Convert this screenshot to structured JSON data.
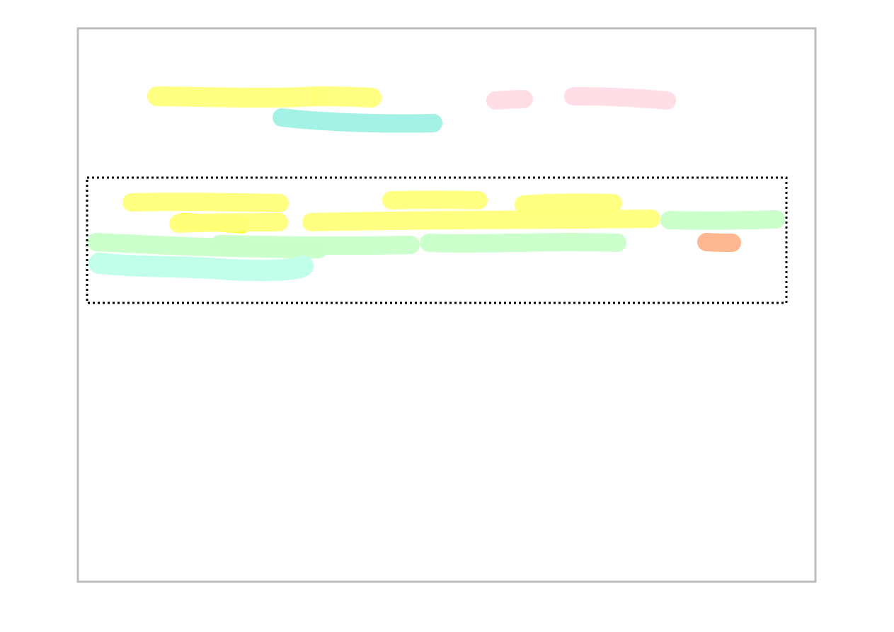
{
  "palette": {
    "page_background": "#ffffff",
    "frame_border": "#bdbdbd",
    "selection_border": "#000000",
    "yellow": "#ffff7a",
    "bright_yellow": "#ffff33",
    "teal": "#9ff0e4",
    "pink": "#ffdde4",
    "green": "#c8ffc8",
    "mint": "#bfffe8",
    "orange": "#ffb38c"
  },
  "strokes": [
    {
      "name": "yellow-stroke",
      "color": "yellow"
    },
    {
      "name": "yellow-stroke",
      "color": "yellow"
    },
    {
      "name": "teal-stroke",
      "color": "teal"
    },
    {
      "name": "pink-stroke",
      "color": "pink"
    },
    {
      "name": "pink-stroke",
      "color": "pink"
    },
    {
      "name": "yellow-stroke",
      "color": "yellow"
    },
    {
      "name": "bright-yellow-stroke",
      "color": "bright_yellow"
    },
    {
      "name": "yellow-stroke",
      "color": "yellow"
    },
    {
      "name": "yellow-stroke",
      "color": "yellow"
    },
    {
      "name": "yellow-stroke",
      "color": "yellow"
    },
    {
      "name": "yellow-stroke",
      "color": "yellow"
    },
    {
      "name": "green-stroke",
      "color": "green"
    },
    {
      "name": "green-stroke",
      "color": "green"
    },
    {
      "name": "green-stroke",
      "color": "green"
    },
    {
      "name": "green-stroke",
      "color": "green"
    },
    {
      "name": "mint-stroke",
      "color": "mint"
    },
    {
      "name": "orange-stroke",
      "color": "orange"
    }
  ]
}
